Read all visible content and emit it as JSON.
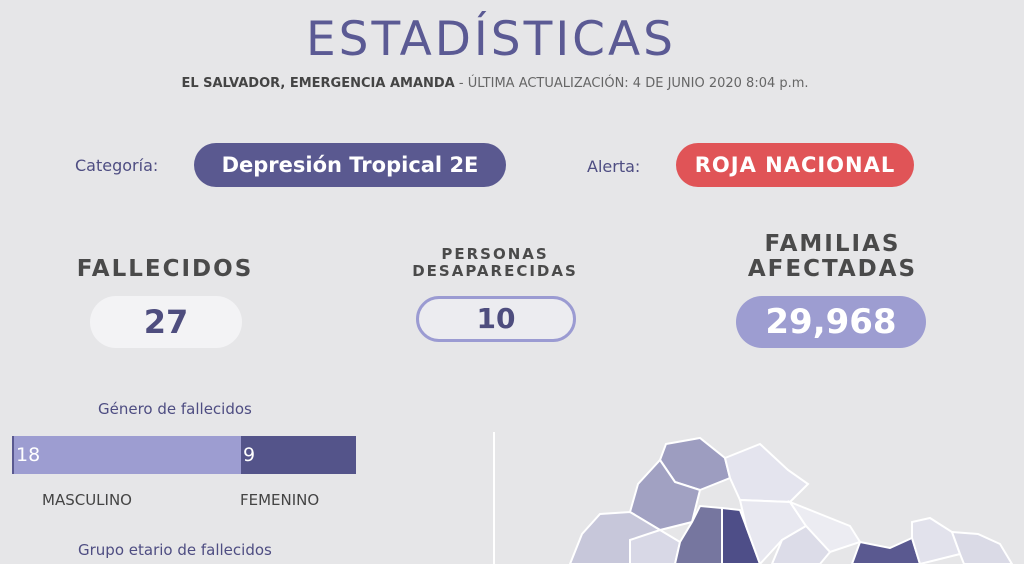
{
  "header": {
    "title": "ESTADÍSTICAS",
    "subtitle_strong": "EL SALVADOR, EMERGENCIA AMANDA",
    "subtitle_rest": " - ÚLTIMA ACTUALIZACIÓN: 4 DE JUNIO 2020 8:04 p.m."
  },
  "category": {
    "label": "Categoría:",
    "value": "Depresión Tropical 2E"
  },
  "alert": {
    "label": "Alerta:",
    "value": "ROJA NACIONAL"
  },
  "stats": {
    "deaths": {
      "label": "FALLECIDOS",
      "value": "27"
    },
    "missing": {
      "label_line1": "PERSONAS",
      "label_line2": "DESAPARECIDAS",
      "value": "10"
    },
    "families": {
      "label_line1": "FAMILIAS",
      "label_line2": "AFECTADAS",
      "value": "29,968"
    }
  },
  "gender_chart": {
    "title": "Género de fallecidos",
    "male": {
      "label": "MASCULINO",
      "value": "18",
      "count": 18
    },
    "female": {
      "label": "FEMENINO",
      "value": "9",
      "count": 9
    }
  },
  "age_chart": {
    "title": "Grupo etario de fallecidos"
  },
  "colors": {
    "primary": "#5a5990",
    "alert": "#e05457",
    "light_purple": "#9d9dd1",
    "dark_purple": "#54548a",
    "background": "#e6e6e8"
  }
}
